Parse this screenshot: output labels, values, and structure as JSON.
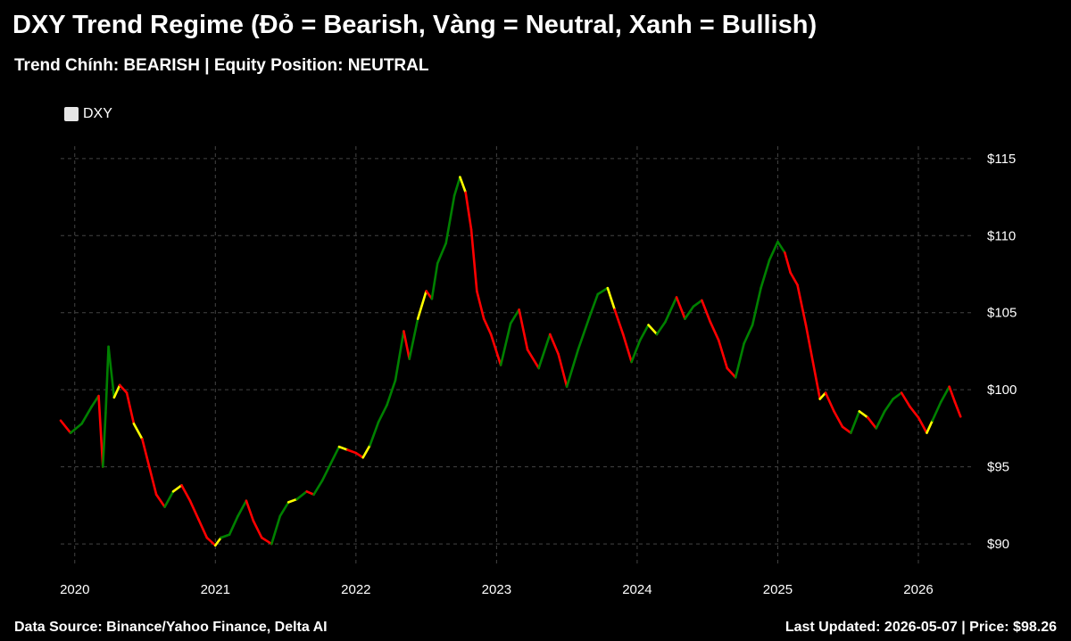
{
  "header": {
    "title": "DXY Trend Regime (Đỏ = Bearish, Vàng = Neutral, Xanh = Bullish)",
    "subtitle": "Trend Chính: BEARISH | Equity Position: NEUTRAL"
  },
  "footer": {
    "source": "Data Source: Binance/Yahoo Finance, Delta AI",
    "updated": "Last Updated: 2026-05-07 | Price: $98.26"
  },
  "colors": {
    "background": "#000000",
    "bearish": "#ff0000",
    "neutral": "#ffff00",
    "bullish": "#008000",
    "grid": "#444444",
    "legend_swatch": "#e6e6e6"
  },
  "chart_data": {
    "type": "line",
    "legend": [
      "DXY"
    ],
    "legend_placement": "top-left",
    "grid": true,
    "y_axis_side": "right",
    "ylim": [
      88.5,
      115.8
    ],
    "xlim": [
      2019.9,
      2026.4
    ],
    "x_ticks": [
      {
        "value": 2020,
        "label": "2020"
      },
      {
        "value": 2021,
        "label": "2021"
      },
      {
        "value": 2022,
        "label": "2022"
      },
      {
        "value": 2023,
        "label": "2023"
      },
      {
        "value": 2024,
        "label": "2024"
      },
      {
        "value": 2025,
        "label": "2025"
      },
      {
        "value": 2026,
        "label": "2026"
      }
    ],
    "y_ticks": [
      {
        "value": 90,
        "label": "$90"
      },
      {
        "value": 95,
        "label": "$95"
      },
      {
        "value": 100,
        "label": "$100"
      },
      {
        "value": 105,
        "label": "$105"
      },
      {
        "value": 110,
        "label": "$110"
      },
      {
        "value": 115,
        "label": "$115"
      }
    ],
    "series": [
      {
        "name": "DXY",
        "points": [
          [
            2019.9,
            98.0,
            "green"
          ],
          [
            2019.97,
            97.2,
            "red"
          ],
          [
            2020.05,
            97.8,
            "green"
          ],
          [
            2020.12,
            98.9,
            "green"
          ],
          [
            2020.17,
            99.6,
            "green"
          ],
          [
            2020.2,
            95.0,
            "red"
          ],
          [
            2020.22,
            98.5,
            "green"
          ],
          [
            2020.24,
            102.8,
            "green"
          ],
          [
            2020.28,
            99.5,
            "green"
          ],
          [
            2020.32,
            100.3,
            "yellow"
          ],
          [
            2020.37,
            99.8,
            "red"
          ],
          [
            2020.42,
            97.8,
            "red"
          ],
          [
            2020.48,
            96.8,
            "yellow"
          ],
          [
            2020.53,
            95.0,
            "red"
          ],
          [
            2020.58,
            93.2,
            "red"
          ],
          [
            2020.64,
            92.4,
            "red"
          ],
          [
            2020.7,
            93.4,
            "green"
          ],
          [
            2020.76,
            93.8,
            "yellow"
          ],
          [
            2020.82,
            92.8,
            "red"
          ],
          [
            2020.88,
            91.6,
            "red"
          ],
          [
            2020.94,
            90.4,
            "red"
          ],
          [
            2021.0,
            89.9,
            "red"
          ],
          [
            2021.04,
            90.4,
            "yellow"
          ],
          [
            2021.1,
            90.6,
            "green"
          ],
          [
            2021.16,
            91.8,
            "green"
          ],
          [
            2021.22,
            92.8,
            "green"
          ],
          [
            2021.27,
            91.5,
            "red"
          ],
          [
            2021.33,
            90.4,
            "red"
          ],
          [
            2021.4,
            90.0,
            "red"
          ],
          [
            2021.46,
            91.8,
            "green"
          ],
          [
            2021.52,
            92.7,
            "green"
          ],
          [
            2021.58,
            92.9,
            "yellow"
          ],
          [
            2021.65,
            93.4,
            "green"
          ],
          [
            2021.7,
            93.2,
            "red"
          ],
          [
            2021.76,
            94.1,
            "green"
          ],
          [
            2021.82,
            95.2,
            "green"
          ],
          [
            2021.88,
            96.3,
            "green"
          ],
          [
            2021.94,
            96.1,
            "yellow"
          ],
          [
            2022.0,
            95.9,
            "red"
          ],
          [
            2022.05,
            95.6,
            "red"
          ],
          [
            2022.1,
            96.4,
            "yellow"
          ],
          [
            2022.16,
            97.9,
            "green"
          ],
          [
            2022.22,
            99.0,
            "green"
          ],
          [
            2022.28,
            100.6,
            "green"
          ],
          [
            2022.34,
            103.8,
            "green"
          ],
          [
            2022.38,
            102.0,
            "red"
          ],
          [
            2022.44,
            104.6,
            "green"
          ],
          [
            2022.5,
            106.4,
            "yellow"
          ],
          [
            2022.54,
            105.9,
            "red"
          ],
          [
            2022.58,
            108.2,
            "green"
          ],
          [
            2022.64,
            109.5,
            "green"
          ],
          [
            2022.7,
            112.6,
            "green"
          ],
          [
            2022.74,
            113.8,
            "green"
          ],
          [
            2022.78,
            112.8,
            "yellow"
          ],
          [
            2022.82,
            110.4,
            "red"
          ],
          [
            2022.86,
            106.4,
            "red"
          ],
          [
            2022.91,
            104.6,
            "red"
          ],
          [
            2022.96,
            103.6,
            "red"
          ],
          [
            2023.03,
            101.6,
            "red"
          ],
          [
            2023.1,
            104.3,
            "green"
          ],
          [
            2023.16,
            105.2,
            "green"
          ],
          [
            2023.22,
            102.6,
            "red"
          ],
          [
            2023.3,
            101.4,
            "red"
          ],
          [
            2023.38,
            103.6,
            "green"
          ],
          [
            2023.44,
            102.3,
            "red"
          ],
          [
            2023.5,
            100.2,
            "red"
          ],
          [
            2023.58,
            102.6,
            "green"
          ],
          [
            2023.66,
            104.7,
            "green"
          ],
          [
            2023.72,
            106.2,
            "green"
          ],
          [
            2023.79,
            106.6,
            "green"
          ],
          [
            2023.84,
            105.2,
            "yellow"
          ],
          [
            2023.9,
            103.6,
            "red"
          ],
          [
            2023.96,
            101.8,
            "red"
          ],
          [
            2024.02,
            103.2,
            "green"
          ],
          [
            2024.08,
            104.2,
            "green"
          ],
          [
            2024.14,
            103.6,
            "yellow"
          ],
          [
            2024.2,
            104.4,
            "green"
          ],
          [
            2024.28,
            106.0,
            "green"
          ],
          [
            2024.34,
            104.6,
            "red"
          ],
          [
            2024.4,
            105.4,
            "green"
          ],
          [
            2024.46,
            105.8,
            "green"
          ],
          [
            2024.52,
            104.4,
            "red"
          ],
          [
            2024.58,
            103.2,
            "red"
          ],
          [
            2024.64,
            101.4,
            "red"
          ],
          [
            2024.7,
            100.8,
            "red"
          ],
          [
            2024.76,
            103.0,
            "green"
          ],
          [
            2024.82,
            104.2,
            "green"
          ],
          [
            2024.88,
            106.6,
            "green"
          ],
          [
            2024.94,
            108.4,
            "green"
          ],
          [
            2025.0,
            109.6,
            "green"
          ],
          [
            2025.05,
            108.9,
            "green"
          ],
          [
            2025.09,
            107.6,
            "red"
          ],
          [
            2025.14,
            106.8,
            "red"
          ],
          [
            2025.2,
            104.2,
            "red"
          ],
          [
            2025.25,
            101.8,
            "red"
          ],
          [
            2025.3,
            99.4,
            "red"
          ],
          [
            2025.34,
            99.8,
            "yellow"
          ],
          [
            2025.4,
            98.6,
            "red"
          ],
          [
            2025.46,
            97.6,
            "red"
          ],
          [
            2025.52,
            97.2,
            "red"
          ],
          [
            2025.58,
            98.6,
            "green"
          ],
          [
            2025.64,
            98.2,
            "yellow"
          ],
          [
            2025.7,
            97.5,
            "red"
          ],
          [
            2025.76,
            98.6,
            "green"
          ],
          [
            2025.82,
            99.4,
            "green"
          ],
          [
            2025.88,
            99.8,
            "green"
          ],
          [
            2025.94,
            98.9,
            "red"
          ],
          [
            2026.0,
            98.2,
            "red"
          ],
          [
            2026.06,
            97.2,
            "red"
          ],
          [
            2026.1,
            98.0,
            "yellow"
          ],
          [
            2026.16,
            99.2,
            "green"
          ],
          [
            2026.22,
            100.2,
            "green"
          ],
          [
            2026.26,
            99.2,
            "red"
          ],
          [
            2026.3,
            98.26,
            "red"
          ]
        ]
      }
    ]
  }
}
